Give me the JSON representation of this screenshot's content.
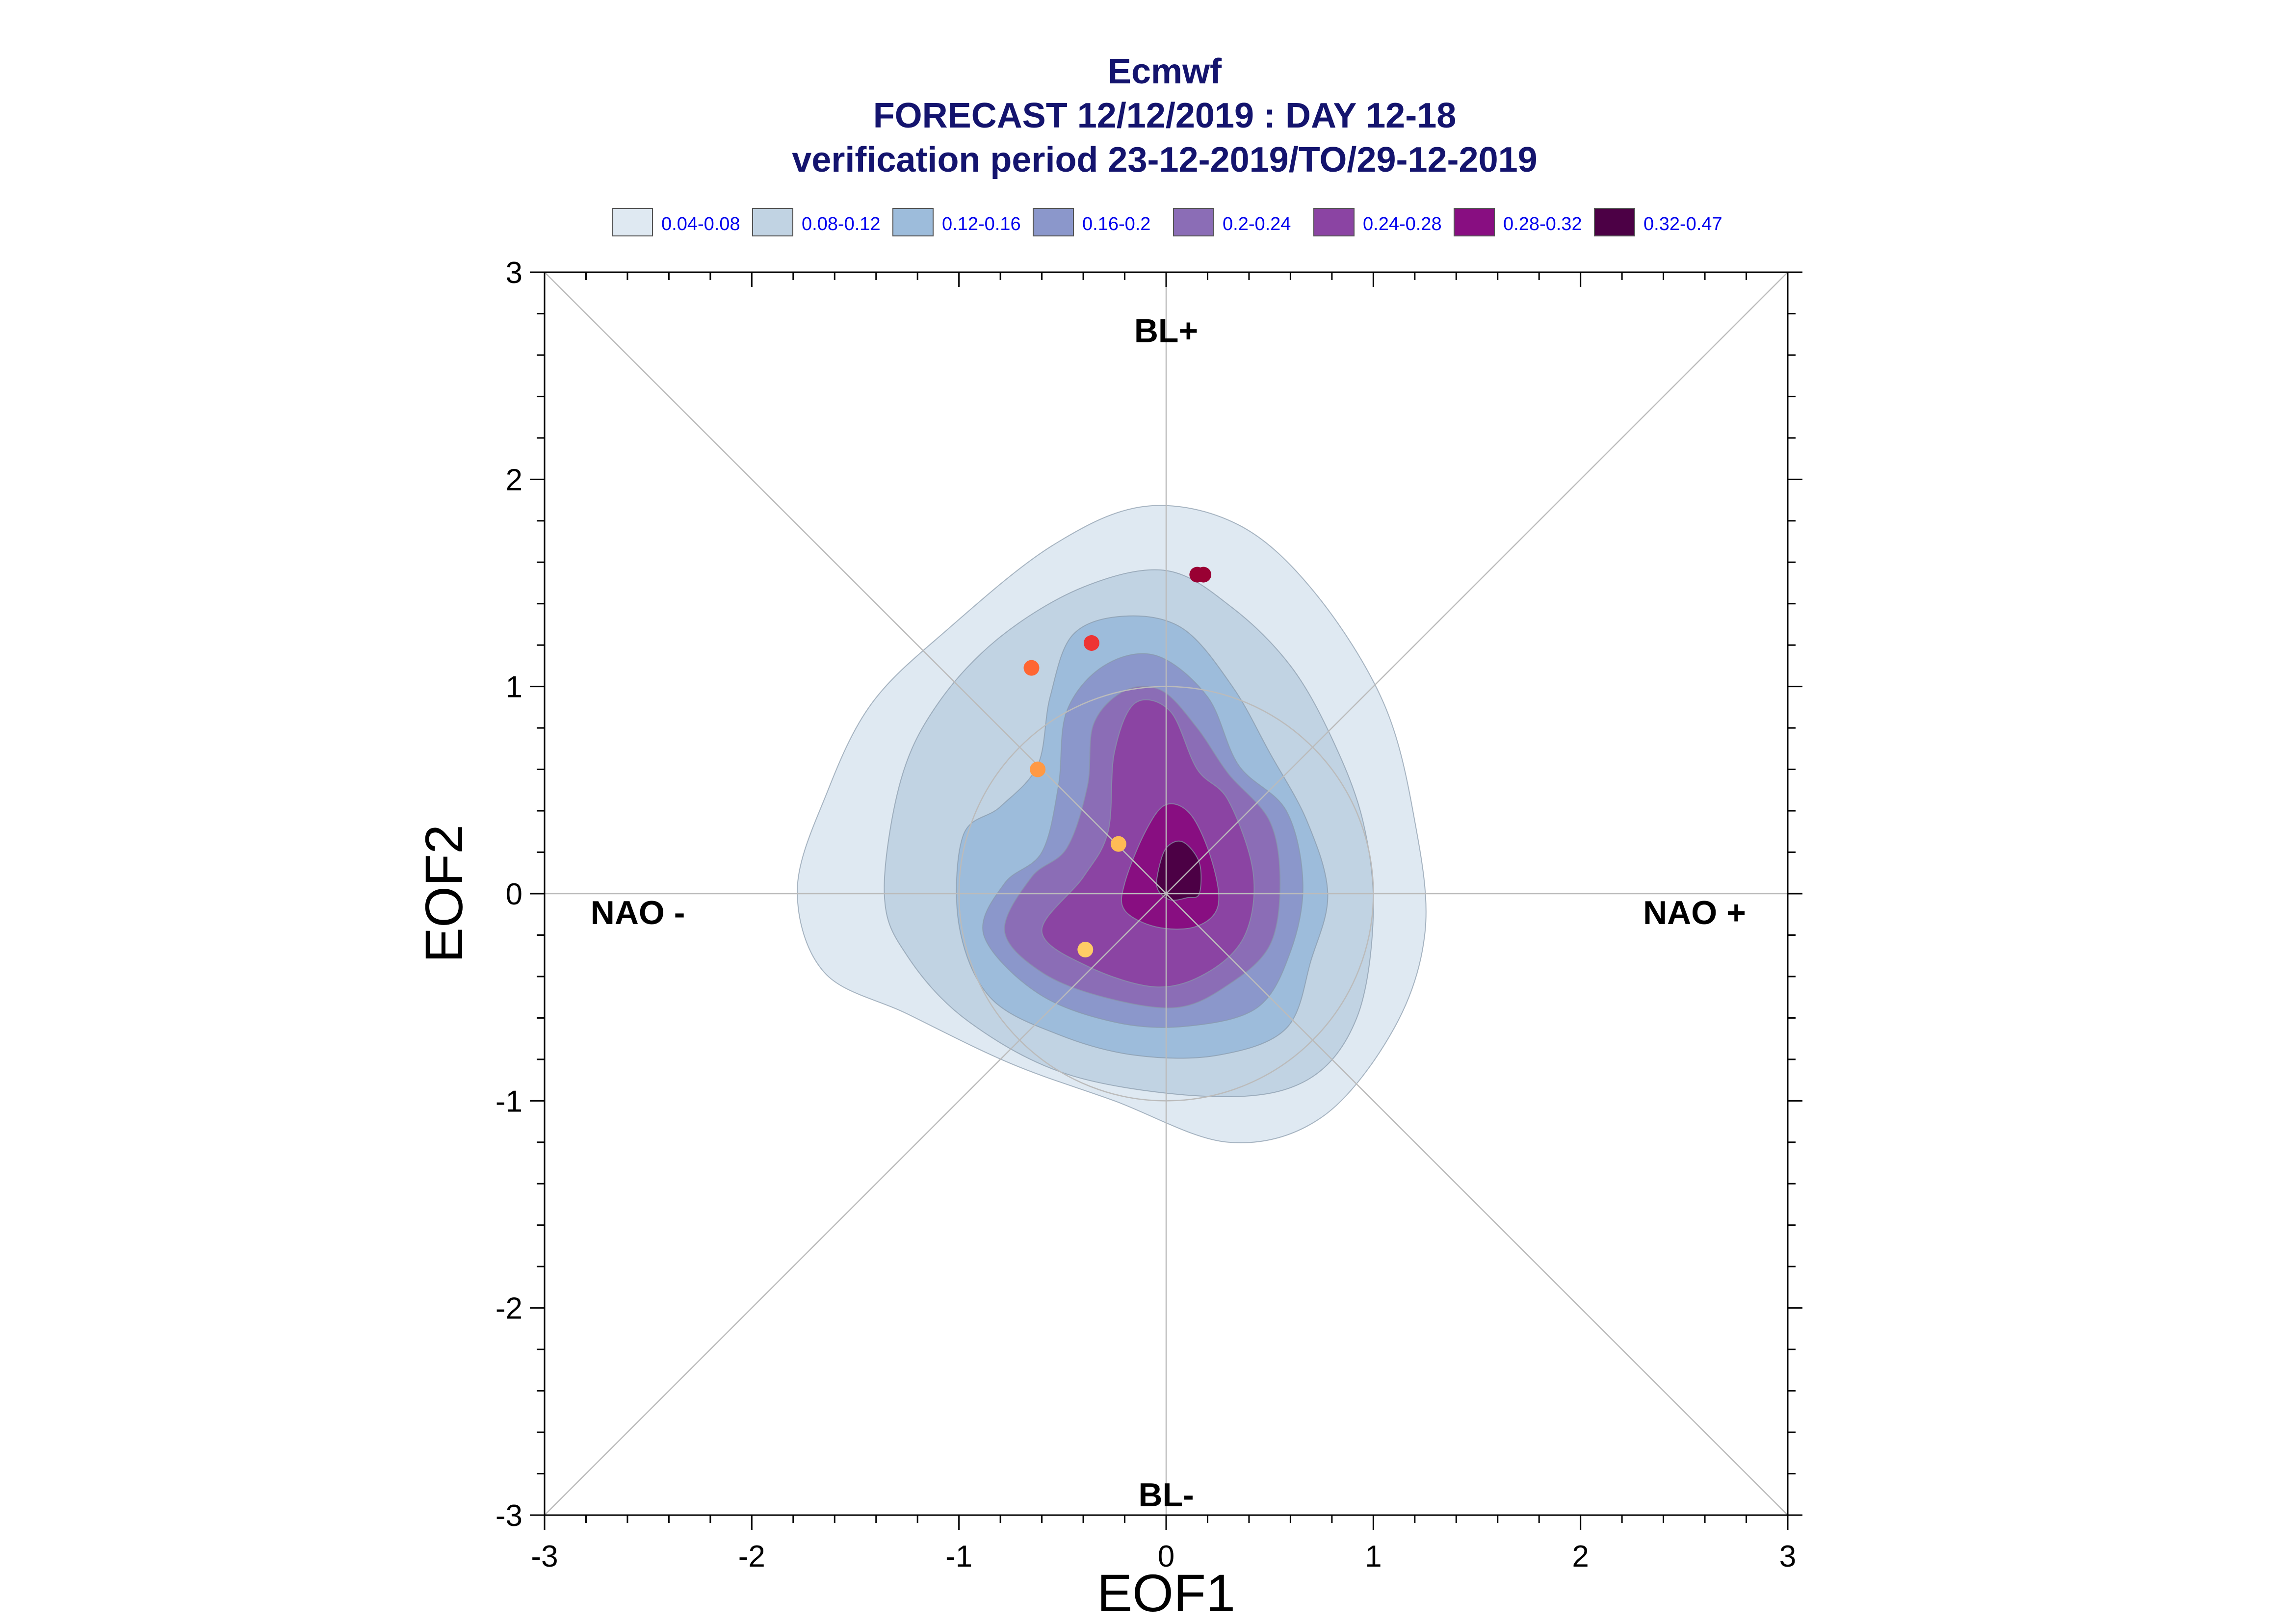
{
  "chart_data": {
    "type": "contour",
    "title": "Ecmwf",
    "subtitle": "FORECAST 12/12/2019 : DAY 12-18",
    "subtitle2": "verification period 23-12-2019/TO/29-12-2019",
    "xlabel": "EOF1",
    "ylabel": "EOF2",
    "xlim": [
      -3,
      3
    ],
    "ylim": [
      -3,
      3
    ],
    "x_ticks": [
      "-3",
      "-2",
      "-1",
      "0",
      "1",
      "2",
      "3"
    ],
    "y_ticks": [
      "-3",
      "-2",
      "-1",
      "0",
      "1",
      "2",
      "3"
    ],
    "grid": false,
    "legend_position": "top",
    "legend": [
      {
        "label": "0.04-0.08",
        "color": "#dfe9f2"
      },
      {
        "label": "0.08-0.12",
        "color": "#c1d3e3"
      },
      {
        "label": "0.12-0.16",
        "color": "#9dbcdb"
      },
      {
        "label": "0.16-0.2",
        "color": "#8b97cb"
      },
      {
        "label": "0.2-0.24",
        "color": "#8b6db6"
      },
      {
        "label": "0.24-0.28",
        "color": "#8b44a3"
      },
      {
        "label": "0.28-0.32",
        "color": "#880e81"
      },
      {
        "label": "0.32-0.47",
        "color": "#4c0045"
      }
    ],
    "regime_labels": [
      {
        "text": "BL+",
        "x": 0,
        "y": 2.72
      },
      {
        "text": "BL-",
        "x": 0,
        "y": -2.9
      },
      {
        "text": "NAO -",
        "x": -2.55,
        "y": -0.09
      },
      {
        "text": "NAO +",
        "x": 2.55,
        "y": -0.09
      }
    ],
    "reference_circle_radius": 1,
    "contours": [
      {
        "level": "0.04-0.08",
        "points": [
          [
            -1.78,
            0.02
          ],
          [
            -1.64,
            0.48
          ],
          [
            -1.42,
            0.92
          ],
          [
            -1.05,
            1.28
          ],
          [
            -0.55,
            1.68
          ],
          [
            -0.1,
            1.87
          ],
          [
            0.35,
            1.78
          ],
          [
            0.72,
            1.45
          ],
          [
            1.05,
            0.92
          ],
          [
            1.2,
            0.35
          ],
          [
            1.25,
            -0.18
          ],
          [
            1.1,
            -0.65
          ],
          [
            0.75,
            -1.08
          ],
          [
            0.3,
            -1.2
          ],
          [
            -0.25,
            -1.0
          ],
          [
            -0.75,
            -0.82
          ],
          [
            -1.25,
            -0.58
          ],
          [
            -1.65,
            -0.38
          ]
        ]
      },
      {
        "level": "0.08-0.12",
        "points": [
          [
            -1.36,
            0.0
          ],
          [
            -1.28,
            0.55
          ],
          [
            -1.1,
            0.92
          ],
          [
            -0.8,
            1.24
          ],
          [
            -0.4,
            1.48
          ],
          [
            0.0,
            1.56
          ],
          [
            0.32,
            1.38
          ],
          [
            0.6,
            1.1
          ],
          [
            0.8,
            0.75
          ],
          [
            0.95,
            0.35
          ],
          [
            1.0,
            -0.1
          ],
          [
            0.92,
            -0.6
          ],
          [
            0.68,
            -0.9
          ],
          [
            0.25,
            -0.98
          ],
          [
            -0.45,
            -0.88
          ],
          [
            -0.95,
            -0.62
          ],
          [
            -1.25,
            -0.3
          ]
        ]
      },
      {
        "level": "0.12-0.16",
        "points": [
          [
            -1.0,
            -0.15
          ],
          [
            -0.98,
            0.28
          ],
          [
            -0.8,
            0.42
          ],
          [
            -0.62,
            0.62
          ],
          [
            -0.56,
            0.95
          ],
          [
            -0.45,
            1.25
          ],
          [
            -0.2,
            1.34
          ],
          [
            0.08,
            1.28
          ],
          [
            0.32,
            1.0
          ],
          [
            0.5,
            0.68
          ],
          [
            0.68,
            0.35
          ],
          [
            0.78,
            0.0
          ],
          [
            0.7,
            -0.32
          ],
          [
            0.58,
            -0.65
          ],
          [
            0.25,
            -0.78
          ],
          [
            -0.15,
            -0.78
          ],
          [
            -0.52,
            -0.68
          ],
          [
            -0.85,
            -0.5
          ]
        ]
      },
      {
        "level": "0.16-0.2",
        "points": [
          [
            -0.88,
            -0.2
          ],
          [
            -0.78,
            0.05
          ],
          [
            -0.6,
            0.2
          ],
          [
            -0.52,
            0.52
          ],
          [
            -0.48,
            0.88
          ],
          [
            -0.3,
            1.1
          ],
          [
            -0.05,
            1.15
          ],
          [
            0.2,
            0.95
          ],
          [
            0.35,
            0.62
          ],
          [
            0.58,
            0.4
          ],
          [
            0.66,
            0.05
          ],
          [
            0.6,
            -0.28
          ],
          [
            0.44,
            -0.55
          ],
          [
            0.1,
            -0.64
          ],
          [
            -0.25,
            -0.62
          ],
          [
            -0.62,
            -0.48
          ]
        ]
      },
      {
        "level": "0.2-0.24",
        "points": [
          [
            -0.78,
            -0.18
          ],
          [
            -0.65,
            0.08
          ],
          [
            -0.48,
            0.22
          ],
          [
            -0.38,
            0.52
          ],
          [
            -0.35,
            0.82
          ],
          [
            -0.2,
            0.98
          ],
          [
            -0.02,
            0.98
          ],
          [
            0.15,
            0.8
          ],
          [
            0.3,
            0.58
          ],
          [
            0.5,
            0.35
          ],
          [
            0.55,
            0.05
          ],
          [
            0.5,
            -0.25
          ],
          [
            0.3,
            -0.44
          ],
          [
            0.05,
            -0.55
          ],
          [
            -0.3,
            -0.5
          ],
          [
            -0.6,
            -0.38
          ]
        ]
      },
      {
        "level": "0.24-0.28",
        "points": [
          [
            -0.6,
            -0.18
          ],
          [
            -0.4,
            0.08
          ],
          [
            -0.28,
            0.3
          ],
          [
            -0.25,
            0.68
          ],
          [
            -0.15,
            0.92
          ],
          [
            0.02,
            0.88
          ],
          [
            0.15,
            0.6
          ],
          [
            0.3,
            0.45
          ],
          [
            0.42,
            0.1
          ],
          [
            0.38,
            -0.2
          ],
          [
            0.2,
            -0.38
          ],
          [
            -0.05,
            -0.45
          ],
          [
            -0.38,
            -0.35
          ]
        ]
      },
      {
        "level": "0.28-0.32",
        "points": [
          [
            -0.2,
            0.05
          ],
          [
            -0.1,
            0.3
          ],
          [
            0.0,
            0.43
          ],
          [
            0.12,
            0.38
          ],
          [
            0.22,
            0.16
          ],
          [
            0.25,
            -0.06
          ],
          [
            0.14,
            -0.16
          ],
          [
            -0.05,
            -0.16
          ],
          [
            -0.2,
            -0.08
          ]
        ]
      },
      {
        "level": "0.32-0.47",
        "points": [
          [
            -0.04,
            0.1
          ],
          [
            0.0,
            0.22
          ],
          [
            0.08,
            0.25
          ],
          [
            0.16,
            0.15
          ],
          [
            0.16,
            0.0
          ],
          [
            0.1,
            -0.02
          ],
          [
            0.02,
            -0.03
          ],
          [
            -0.04,
            0.02
          ]
        ]
      }
    ],
    "members": [
      {
        "x": 0.15,
        "y": 1.54,
        "color": "#990033"
      },
      {
        "x": 0.18,
        "y": 1.54,
        "color": "#990033"
      },
      {
        "x": -0.36,
        "y": 1.21,
        "color": "#ee3333"
      },
      {
        "x": -0.65,
        "y": 1.09,
        "color": "#ff6633"
      },
      {
        "x": -0.62,
        "y": 0.6,
        "color": "#ff9944"
      },
      {
        "x": -0.23,
        "y": 0.24,
        "color": "#ffbb55"
      },
      {
        "x": -0.39,
        "y": -0.27,
        "color": "#ffcc66"
      }
    ]
  }
}
